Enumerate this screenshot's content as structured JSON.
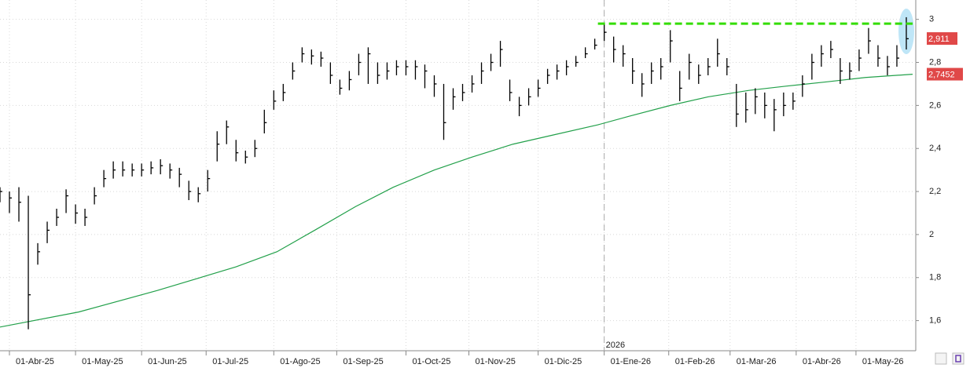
{
  "chart_data": {
    "type": "ohlc",
    "xlim": [
      0,
      291
    ],
    "ylim": [
      1.46,
      3.09
    ],
    "yticks": [
      {
        "value": 1.6,
        "label": "1,6"
      },
      {
        "value": 1.8,
        "label": "1,8"
      },
      2,
      {
        "value": 2.2,
        "label": "2,2"
      },
      {
        "value": 2.4,
        "label": "2,4"
      },
      {
        "value": 2.6,
        "label": "2,6"
      },
      {
        "value": 2.8,
        "label": "2,8"
      },
      3
    ],
    "xticks": [
      {
        "value": 3,
        "label": "01-Abr-25"
      },
      {
        "value": 24,
        "label": "01-May-25"
      },
      {
        "value": 45,
        "label": "01-Jun-25"
      },
      {
        "value": 65.5,
        "label": "01-Jul-25"
      },
      {
        "value": 87,
        "label": "01-Ago-25"
      },
      {
        "value": 107,
        "label": "01-Sep-25"
      },
      {
        "value": 129,
        "label": "01-Oct-25"
      },
      {
        "value": 149,
        "label": "01-Nov-25"
      },
      {
        "value": 171,
        "label": "01-Dic-25"
      },
      {
        "value": 192,
        "label": "01-Ene-26"
      },
      {
        "value": 212.5,
        "label": "01-Feb-26"
      },
      {
        "value": 232,
        "label": "01-Mar-26"
      },
      {
        "value": 253,
        "label": "01-Abr-26"
      },
      {
        "value": 272,
        "label": "01-May-26"
      }
    ],
    "grid": true,
    "year_marker": {
      "value": 192,
      "label": "2026"
    },
    "bars": {
      "color": "#000000",
      "x": [
        0,
        3,
        6,
        9,
        12,
        15,
        18,
        21,
        24,
        27,
        30,
        33,
        36,
        39,
        42,
        45,
        48,
        51,
        54,
        57,
        60,
        63,
        66,
        69,
        72,
        75,
        78,
        81,
        84,
        87,
        90,
        93,
        96,
        99,
        102,
        105,
        108,
        111,
        114,
        117,
        120,
        123,
        126,
        129,
        132,
        135,
        138,
        141,
        144,
        147,
        150,
        153,
        156,
        159,
        162,
        165,
        168,
        171,
        174,
        177,
        180,
        183,
        186,
        189,
        192,
        195,
        198,
        201,
        204,
        207,
        210,
        213,
        216,
        219,
        222,
        225,
        228,
        231,
        234,
        237,
        240,
        243,
        246,
        249,
        252,
        255,
        258,
        261,
        264,
        267,
        270,
        273,
        276,
        279,
        282,
        285,
        288
      ],
      "high": [
        2.22,
        2.2,
        2.22,
        2.18,
        1.96,
        2.06,
        2.12,
        2.21,
        2.14,
        2.12,
        2.22,
        2.3,
        2.34,
        2.34,
        2.33,
        2.33,
        2.34,
        2.35,
        2.33,
        2.31,
        2.25,
        2.22,
        2.3,
        2.48,
        2.53,
        2.44,
        2.39,
        2.44,
        2.58,
        2.67,
        2.7,
        2.8,
        2.87,
        2.86,
        2.85,
        2.8,
        2.72,
        2.76,
        2.84,
        2.87,
        2.8,
        2.8,
        2.81,
        2.81,
        2.81,
        2.79,
        2.74,
        2.7,
        2.68,
        2.7,
        2.74,
        2.8,
        2.84,
        2.9,
        2.72,
        2.64,
        2.68,
        2.72,
        2.77,
        2.79,
        2.81,
        2.83,
        2.87,
        2.91,
        2.98,
        2.92,
        2.88,
        2.82,
        2.75,
        2.8,
        2.82,
        2.95,
        2.76,
        2.84,
        2.79,
        2.82,
        2.91,
        2.82,
        2.7,
        2.66,
        2.68,
        2.66,
        2.63,
        2.66,
        2.66,
        2.74,
        2.84,
        2.88,
        2.9,
        2.82,
        2.8,
        2.86,
        2.96,
        2.88,
        2.83,
        2.88,
        3.01
      ],
      "low": [
        2.15,
        2.1,
        2.06,
        1.56,
        1.86,
        1.96,
        2.04,
        2.1,
        2.05,
        2.04,
        2.14,
        2.22,
        2.26,
        2.27,
        2.27,
        2.27,
        2.28,
        2.28,
        2.26,
        2.22,
        2.16,
        2.15,
        2.2,
        2.34,
        2.42,
        2.34,
        2.33,
        2.36,
        2.47,
        2.58,
        2.62,
        2.72,
        2.8,
        2.79,
        2.78,
        2.7,
        2.65,
        2.67,
        2.74,
        2.7,
        2.7,
        2.72,
        2.74,
        2.74,
        2.72,
        2.68,
        2.64,
        2.44,
        2.58,
        2.62,
        2.66,
        2.7,
        2.76,
        2.78,
        2.62,
        2.55,
        2.6,
        2.64,
        2.7,
        2.72,
        2.74,
        2.78,
        2.82,
        2.86,
        2.9,
        2.8,
        2.78,
        2.7,
        2.64,
        2.7,
        2.72,
        2.8,
        2.62,
        2.72,
        2.7,
        2.74,
        2.78,
        2.74,
        2.5,
        2.52,
        2.56,
        2.54,
        2.48,
        2.55,
        2.58,
        2.64,
        2.72,
        2.78,
        2.82,
        2.7,
        2.72,
        2.76,
        2.84,
        2.78,
        2.74,
        2.78,
        2.86
      ],
      "close": [
        2.2,
        2.17,
        2.15,
        1.72,
        1.92,
        2.02,
        2.08,
        2.18,
        2.1,
        2.08,
        2.18,
        2.26,
        2.3,
        2.3,
        2.3,
        2.3,
        2.31,
        2.32,
        2.3,
        2.28,
        2.2,
        2.19,
        2.26,
        2.42,
        2.5,
        2.38,
        2.36,
        2.4,
        2.52,
        2.62,
        2.66,
        2.76,
        2.84,
        2.83,
        2.82,
        2.74,
        2.68,
        2.72,
        2.8,
        2.84,
        2.74,
        2.76,
        2.78,
        2.78,
        2.78,
        2.76,
        2.7,
        2.52,
        2.64,
        2.66,
        2.7,
        2.76,
        2.8,
        2.86,
        2.66,
        2.6,
        2.64,
        2.68,
        2.74,
        2.76,
        2.78,
        2.8,
        2.84,
        2.88,
        2.94,
        2.86,
        2.84,
        2.76,
        2.7,
        2.76,
        2.78,
        2.9,
        2.68,
        2.8,
        2.74,
        2.78,
        2.84,
        2.78,
        2.56,
        2.58,
        2.64,
        2.6,
        2.58,
        2.6,
        2.62,
        2.7,
        2.8,
        2.84,
        2.86,
        2.76,
        2.76,
        2.82,
        2.9,
        2.82,
        2.78,
        2.82,
        2.91
      ]
    },
    "moving_average": {
      "color": "#22a04a",
      "x": [
        0,
        25,
        50,
        75,
        88,
        100,
        113,
        125,
        138,
        150,
        163,
        175,
        190,
        200,
        213,
        225,
        238,
        250,
        263,
        275,
        290
      ],
      "values": [
        1.57,
        1.64,
        1.74,
        1.85,
        1.92,
        2.02,
        2.13,
        2.22,
        2.3,
        2.36,
        2.42,
        2.46,
        2.51,
        2.55,
        2.6,
        2.64,
        2.67,
        2.69,
        2.71,
        2.73,
        2.745
      ]
    },
    "resistance": {
      "value": 2.98,
      "x": [
        190,
        290
      ],
      "color": "#33dd00"
    },
    "price_labels": [
      {
        "value": 2.911,
        "label": "2,911",
        "color": "#e04848"
      },
      {
        "value": 2.7452,
        "label": "2,7452",
        "color": "#e04848"
      }
    ]
  }
}
